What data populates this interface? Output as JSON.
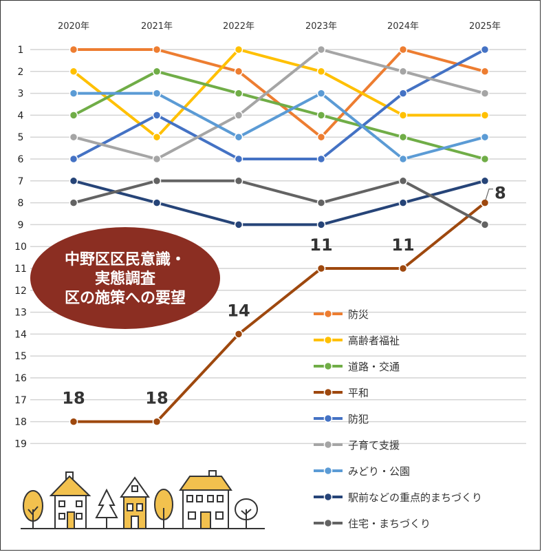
{
  "chart_data": {
    "type": "line",
    "title": [
      "中野区区民意識・",
      "実態調査",
      "区の施策への要望"
    ],
    "categories": [
      "2020年",
      "2021年",
      "2022年",
      "2023年",
      "2024年",
      "2025年"
    ],
    "ylabels": [
      "1",
      "2",
      "3",
      "4",
      "5",
      "6",
      "7",
      "8",
      "9",
      "10",
      "11",
      "12",
      "13",
      "14",
      "15",
      "16",
      "17",
      "18",
      "19"
    ],
    "ylim": [
      1,
      19
    ],
    "y_inverted": true,
    "series": [
      {
        "name": "防災",
        "color": "#ED7D31",
        "values": [
          1,
          1,
          2,
          5,
          1,
          2
        ]
      },
      {
        "name": "高齢者福祉",
        "color": "#FFC000",
        "values": [
          2,
          5,
          1,
          2,
          4,
          4
        ]
      },
      {
        "name": "道路・交通",
        "color": "#70AD47",
        "values": [
          4,
          2,
          3,
          4,
          5,
          6
        ]
      },
      {
        "name": "平和",
        "color": "#9E480E",
        "values": [
          18,
          18,
          14,
          11,
          11,
          8
        ]
      },
      {
        "name": "防犯",
        "color": "#4472C4",
        "values": [
          6,
          4,
          6,
          6,
          3,
          1
        ]
      },
      {
        "name": "子育て支援",
        "color": "#A5A5A5",
        "values": [
          5,
          6,
          4,
          1,
          2,
          3
        ]
      },
      {
        "name": "みどり・公園",
        "color": "#5B9BD5",
        "values": [
          3,
          3,
          5,
          3,
          6,
          5
        ]
      },
      {
        "name": "駅前などの重点的まちづくり",
        "color": "#264478",
        "values": [
          7,
          8,
          9,
          9,
          8,
          7
        ]
      },
      {
        "name": "住宅・まちづくり",
        "color": "#636363",
        "values": [
          8,
          7,
          7,
          8,
          7,
          9
        ]
      }
    ],
    "data_labels": [
      {
        "series": "平和",
        "index": 0,
        "text": "18"
      },
      {
        "series": "平和",
        "index": 1,
        "text": "18"
      },
      {
        "series": "平和",
        "index": 2,
        "text": "14"
      },
      {
        "series": "平和",
        "index": 3,
        "text": "11"
      },
      {
        "series": "平和",
        "index": 4,
        "text": "11"
      },
      {
        "series": "平和",
        "index": 5,
        "text": "8"
      }
    ],
    "title_badge_color": "#8B2E22",
    "grid": true,
    "legend": "bottom-right"
  }
}
